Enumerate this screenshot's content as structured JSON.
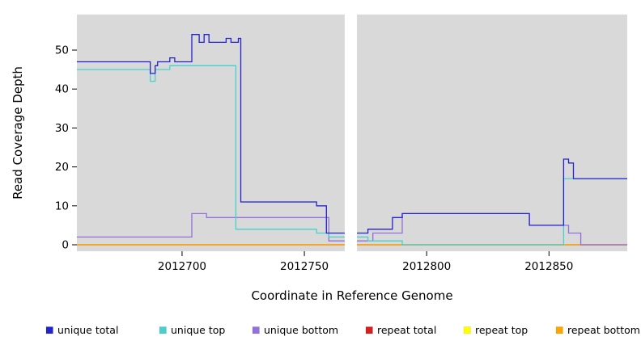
{
  "chart_data": {
    "type": "line",
    "title": "",
    "xlabel": "Coordinate in Reference Genome",
    "ylabel": "Read Coverage Depth",
    "xlim": [
      2012657,
      2012882
    ],
    "ylim": [
      0,
      55
    ],
    "x_ticks": [
      2012700,
      2012750,
      2012800,
      2012850
    ],
    "y_ticks": [
      0,
      10,
      20,
      30,
      40,
      50
    ],
    "plot_bg": "#d9d9d9",
    "grid": false,
    "legend_position": "bottom",
    "gap_band": {
      "x_start": 2012766.5,
      "x_end": 2012771.5,
      "color": "#ffffff"
    },
    "series": [
      {
        "name": "repeat top",
        "color": "#ffff00",
        "points": [
          [
            2012657,
            0
          ],
          [
            2012882,
            0
          ]
        ]
      },
      {
        "name": "repeat total",
        "color": "#d42020",
        "points": [
          [
            2012657,
            0
          ],
          [
            2012882,
            0
          ]
        ]
      },
      {
        "name": "repeat bottom",
        "color": "#ffa500",
        "points": [
          [
            2012657,
            0
          ],
          [
            2012882,
            0
          ]
        ]
      },
      {
        "name": "unique bottom",
        "color": "#9370db",
        "points": [
          [
            2012657,
            2
          ],
          [
            2012704,
            2
          ],
          [
            2012704,
            8
          ],
          [
            2012710,
            8
          ],
          [
            2012710,
            7
          ],
          [
            2012760,
            7
          ],
          [
            2012760,
            1
          ],
          [
            2012778,
            1
          ],
          [
            2012778,
            3
          ],
          [
            2012790,
            3
          ],
          [
            2012790,
            8
          ],
          [
            2012842,
            8
          ],
          [
            2012842,
            5
          ],
          [
            2012858,
            5
          ],
          [
            2012858,
            3
          ],
          [
            2012863,
            3
          ],
          [
            2012863,
            0
          ],
          [
            2012882,
            0
          ]
        ]
      },
      {
        "name": "unique top",
        "color": "#48d1cc",
        "points": [
          [
            2012657,
            45
          ],
          [
            2012687,
            45
          ],
          [
            2012687,
            42
          ],
          [
            2012689,
            42
          ],
          [
            2012689,
            45
          ],
          [
            2012695,
            45
          ],
          [
            2012695,
            46
          ],
          [
            2012722,
            46
          ],
          [
            2012722,
            4
          ],
          [
            2012755,
            4
          ],
          [
            2012755,
            3
          ],
          [
            2012760,
            3
          ],
          [
            2012760,
            2
          ],
          [
            2012776,
            2
          ],
          [
            2012776,
            1
          ],
          [
            2012790,
            1
          ],
          [
            2012790,
            0
          ],
          [
            2012856,
            0
          ],
          [
            2012856,
            17
          ],
          [
            2012882,
            17
          ]
        ]
      },
      {
        "name": "unique total",
        "color": "#2323cd",
        "points": [
          [
            2012657,
            47
          ],
          [
            2012687,
            47
          ],
          [
            2012687,
            44
          ],
          [
            2012689,
            44
          ],
          [
            2012689,
            46
          ],
          [
            2012690,
            46
          ],
          [
            2012690,
            47
          ],
          [
            2012695,
            47
          ],
          [
            2012695,
            48
          ],
          [
            2012697,
            48
          ],
          [
            2012697,
            47
          ],
          [
            2012704,
            47
          ],
          [
            2012704,
            54
          ],
          [
            2012707,
            54
          ],
          [
            2012707,
            52
          ],
          [
            2012709,
            52
          ],
          [
            2012709,
            54
          ],
          [
            2012711,
            54
          ],
          [
            2012711,
            52
          ],
          [
            2012718,
            52
          ],
          [
            2012718,
            53
          ],
          [
            2012720,
            53
          ],
          [
            2012720,
            52
          ],
          [
            2012723,
            52
          ],
          [
            2012723,
            53
          ],
          [
            2012724,
            53
          ],
          [
            2012724,
            11
          ],
          [
            2012755,
            11
          ],
          [
            2012755,
            10
          ],
          [
            2012759,
            10
          ],
          [
            2012759,
            3
          ],
          [
            2012776,
            3
          ],
          [
            2012776,
            4
          ],
          [
            2012786,
            4
          ],
          [
            2012786,
            7
          ],
          [
            2012790,
            7
          ],
          [
            2012790,
            8
          ],
          [
            2012842,
            8
          ],
          [
            2012842,
            5
          ],
          [
            2012856,
            5
          ],
          [
            2012856,
            22
          ],
          [
            2012858,
            22
          ],
          [
            2012858,
            21
          ],
          [
            2012860,
            21
          ],
          [
            2012860,
            17
          ],
          [
            2012882,
            17
          ]
        ]
      }
    ],
    "legend": [
      {
        "label": "unique total",
        "color": "#2323cd"
      },
      {
        "label": "unique top",
        "color": "#48d1cc"
      },
      {
        "label": "unique bottom",
        "color": "#9370db"
      },
      {
        "label": "repeat total",
        "color": "#d42020"
      },
      {
        "label": "repeat top",
        "color": "#ffff00"
      },
      {
        "label": "repeat bottom",
        "color": "#ffa500"
      }
    ]
  }
}
